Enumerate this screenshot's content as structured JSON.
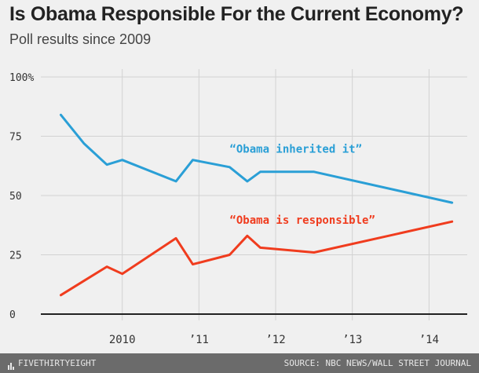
{
  "title": "Is Obama Responsible For the Current Economy?",
  "subtitle": "Poll results since 2009",
  "footer": {
    "brand": "FIVETHIRTYEIGHT",
    "source": "SOURCE: NBC NEWS/WALL STREET JOURNAL"
  },
  "colors": {
    "inherited": "#2a9fd6",
    "responsible": "#f03c1e",
    "grid": "#d2d2d2",
    "axis": "#222222",
    "tick_text": "#333333"
  },
  "chart_data": {
    "type": "line",
    "title": "Is Obama Responsible For the Current Economy?",
    "subtitle": "Poll results since 2009",
    "xlim": [
      2009,
      2014.6
    ],
    "ylim": [
      0,
      100
    ],
    "y_ticks": [
      {
        "value": 0,
        "label": "0"
      },
      {
        "value": 25,
        "label": "25"
      },
      {
        "value": 50,
        "label": "50"
      },
      {
        "value": 75,
        "label": "75"
      },
      {
        "value": 100,
        "label": "100%"
      }
    ],
    "x_ticks": [
      {
        "value": 2010,
        "label": "2010"
      },
      {
        "value": 2011,
        "label": "’11"
      },
      {
        "value": 2012,
        "label": "’12"
      },
      {
        "value": 2013,
        "label": "’13"
      },
      {
        "value": 2014,
        "label": "’14"
      }
    ],
    "grid": true,
    "series": [
      {
        "name": "“Obama inherited it”",
        "color_key": "inherited",
        "label_position": {
          "x": 2011.4,
          "y": 68
        },
        "points": [
          [
            2009.2,
            84
          ],
          [
            2009.5,
            72
          ],
          [
            2009.8,
            63
          ],
          [
            2010.0,
            65
          ],
          [
            2010.7,
            56
          ],
          [
            2010.92,
            65
          ],
          [
            2011.4,
            62
          ],
          [
            2011.63,
            56
          ],
          [
            2011.8,
            60
          ],
          [
            2012.5,
            60
          ],
          [
            2014.3,
            47
          ]
        ]
      },
      {
        "name": "“Obama is responsible”",
        "color_key": "responsible",
        "label_position": {
          "x": 2011.4,
          "y": 38
        },
        "points": [
          [
            2009.2,
            8
          ],
          [
            2009.5,
            14
          ],
          [
            2009.8,
            20
          ],
          [
            2010.0,
            17
          ],
          [
            2010.7,
            32
          ],
          [
            2010.92,
            21
          ],
          [
            2011.4,
            25
          ],
          [
            2011.63,
            33
          ],
          [
            2011.8,
            28
          ],
          [
            2012.5,
            26
          ],
          [
            2014.3,
            39
          ]
        ]
      }
    ]
  }
}
